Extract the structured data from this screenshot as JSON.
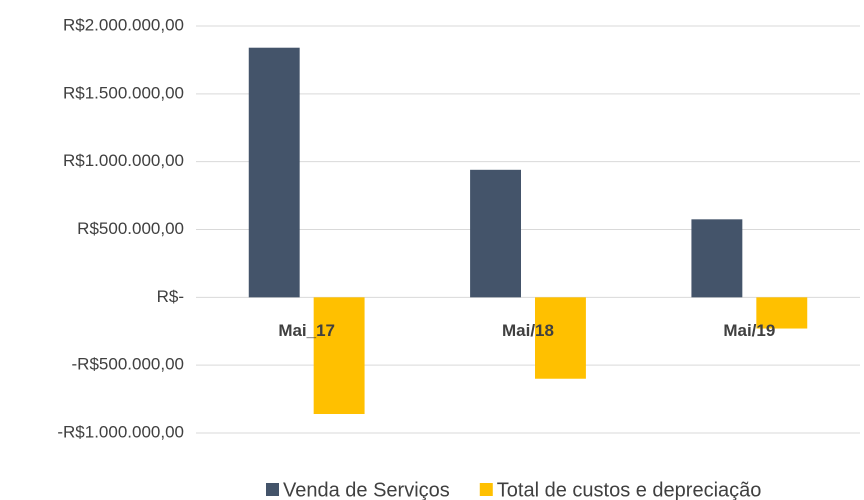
{
  "chart_data": {
    "type": "bar",
    "categories": [
      "Mai_17",
      "Mai/18",
      "Mai/19"
    ],
    "series": [
      {
        "name": "Venda de Serviços",
        "color": "#44546a",
        "values": [
          1840000,
          940000,
          575000
        ]
      },
      {
        "name": "Total de custos e depreciação",
        "color": "#ffc000",
        "values": [
          -860000,
          -600000,
          -230000
        ]
      }
    ],
    "ylim": [
      -1000000,
      2000000
    ],
    "yticks": [
      {
        "value": -1000000,
        "label": "-R$1.000.000,00"
      },
      {
        "value": -500000,
        "label": "-R$500.000,00"
      },
      {
        "value": 0,
        "label": "R$-"
      },
      {
        "value": 500000,
        "label": "R$500.000,00"
      },
      {
        "value": 1000000,
        "label": "R$1.000.000,00"
      },
      {
        "value": 1500000,
        "label": "R$1.500.000,00"
      },
      {
        "value": 2000000,
        "label": "R$2.000.000,00"
      }
    ],
    "grid": true,
    "legend": "bottom"
  }
}
